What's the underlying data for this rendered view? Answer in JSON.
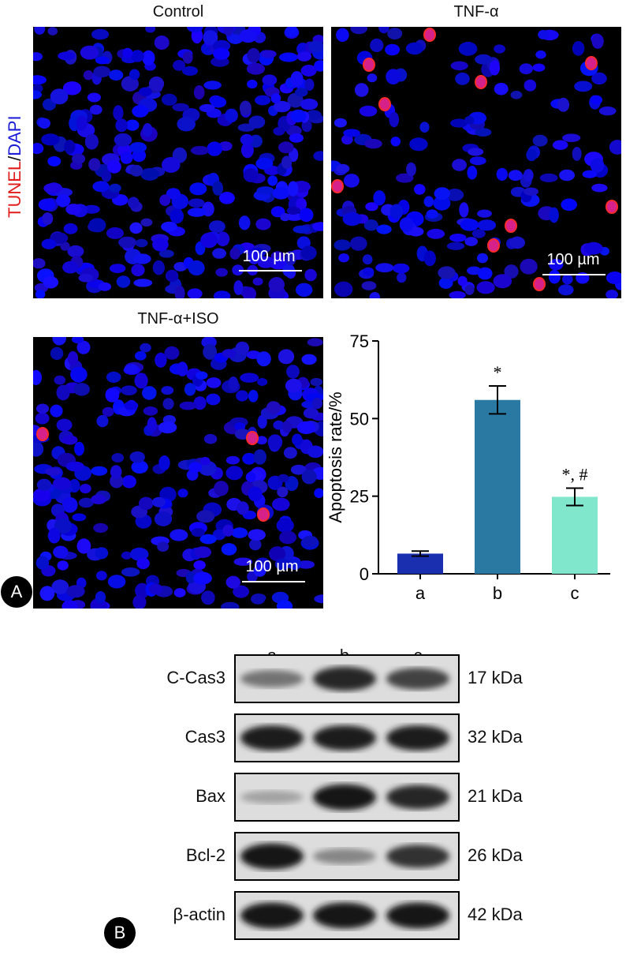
{
  "panel_a": {
    "badge": "A",
    "side_label": {
      "part1": "TUNEL",
      "separator": "/",
      "part2": "DAPI",
      "part1_color": "#e21b1b",
      "part2_color": "#1b1bd8"
    },
    "images": [
      {
        "title": "Control",
        "scale": "100 µm"
      },
      {
        "title": "TNF-α",
        "scale": "100 µm"
      },
      {
        "title": "TNF-α+ISO",
        "scale": "100 µm"
      }
    ]
  },
  "chart_data": {
    "type": "bar",
    "categories": [
      "a",
      "b",
      "c"
    ],
    "values": [
      6.5,
      56,
      24.8
    ],
    "errors": [
      0.8,
      4.5,
      2.8
    ],
    "annotations": [
      "",
      "*",
      "*, #"
    ],
    "colors": [
      "#1a2fb0",
      "#2a79a3",
      "#80e6cc"
    ],
    "ylabel": "Apoptosis rate/%",
    "ylim": [
      0,
      75
    ],
    "yticks": [
      0,
      25,
      50,
      75
    ],
    "grid": false
  },
  "panel_b": {
    "badge": "B",
    "lanes": [
      "a",
      "b",
      "c"
    ],
    "blots": [
      {
        "protein": "C-Cas3",
        "kda": "17 kDa",
        "intensity": [
          0.45,
          0.85,
          0.7
        ]
      },
      {
        "protein": "Cas3",
        "kda": "32 kDa",
        "intensity": [
          0.9,
          0.9,
          0.9
        ]
      },
      {
        "protein": "Bax",
        "kda": "21 kDa",
        "intensity": [
          0.2,
          0.95,
          0.85
        ]
      },
      {
        "protein": "Bcl-2",
        "kda": "26 kDa",
        "intensity": [
          0.95,
          0.35,
          0.8
        ]
      },
      {
        "protein": "β-actin",
        "kda": "42 kDa",
        "intensity": [
          0.95,
          0.95,
          0.95
        ]
      }
    ]
  }
}
